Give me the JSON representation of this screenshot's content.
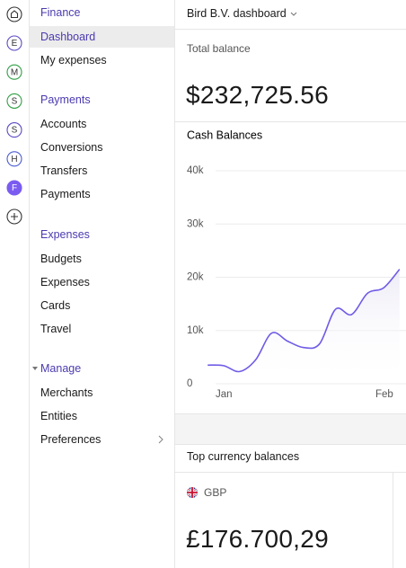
{
  "rail": {
    "icons": [
      {
        "letter": "E",
        "color": "#5b4bc4"
      },
      {
        "letter": "M",
        "color": "#2f9e44"
      },
      {
        "letter": "S",
        "color": "#2f9e44"
      },
      {
        "letter": "S",
        "color": "#5b4bc4"
      },
      {
        "letter": "H",
        "color": "#4a5bd0"
      },
      {
        "letter": "F",
        "color": "#7b5cf0",
        "filled": true
      }
    ]
  },
  "sidebar": {
    "sections": [
      {
        "title": "Finance",
        "items": [
          "Dashboard",
          "My expenses"
        ]
      },
      {
        "title": "Payments",
        "items": [
          "Accounts",
          "Conversions",
          "Transfers",
          "Payments"
        ]
      },
      {
        "title": "Expenses",
        "items": [
          "Budgets",
          "Expenses",
          "Cards",
          "Travel"
        ]
      },
      {
        "title": "Manage",
        "items": [
          "Merchants",
          "Entities",
          "Preferences"
        ]
      }
    ]
  },
  "header": {
    "title": "Bird B.V. dashboard"
  },
  "total_balance": {
    "label": "Total balance",
    "value": "$232,725.56"
  },
  "chart_data": {
    "type": "line",
    "title": "Cash Balances",
    "categories": [
      null,
      "Jan",
      null,
      null,
      null,
      null,
      null,
      null,
      null,
      null,
      null,
      "Feb",
      null
    ],
    "series": [
      {
        "name": "Cash",
        "color": "#6f5ce6",
        "values": [
          3500,
          3400,
          2300,
          4500,
          9500,
          8000,
          6800,
          7500,
          14000,
          13000,
          17000,
          18000,
          21500
        ]
      }
    ],
    "ylim": [
      0,
      40000
    ],
    "yticks": [
      {
        "value": 0,
        "label": "0"
      },
      {
        "value": 10000,
        "label": "10k"
      },
      {
        "value": 20000,
        "label": "20k"
      },
      {
        "value": 30000,
        "label": "30k"
      },
      {
        "value": 40000,
        "label": "40k"
      }
    ],
    "grid": true
  },
  "currency_balances": {
    "title": "Top currency balances",
    "cards": [
      {
        "code": "GBP",
        "balance": "£176.700,29"
      }
    ]
  }
}
